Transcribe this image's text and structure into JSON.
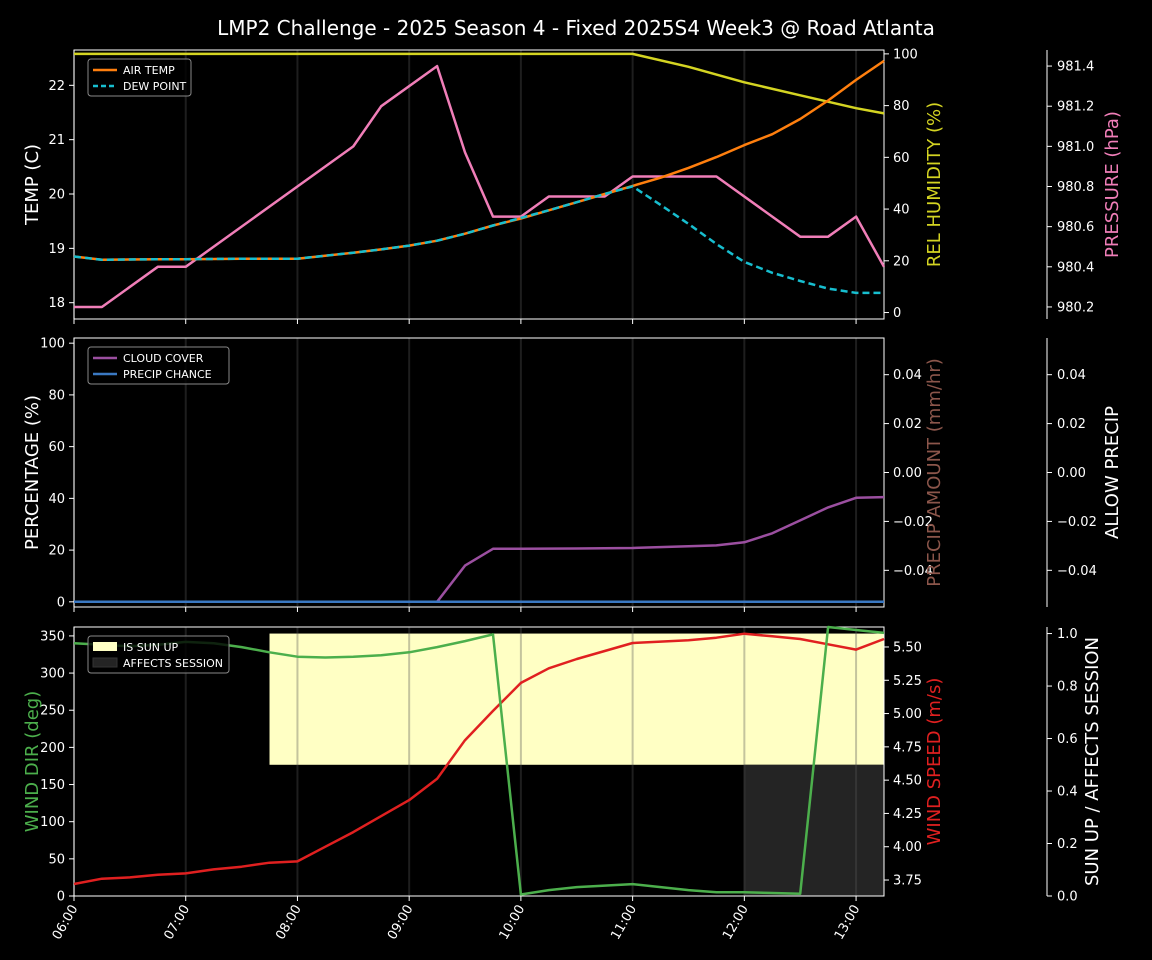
{
  "title": "LMP2 Challenge  - 2025 Season 4 - Fixed 2025S4 Week3 @ Road Atlanta",
  "colors": {
    "background": "#000000",
    "axis": "#ffffff",
    "air_temp": "#ff7f0e",
    "dew_point": "#17becf",
    "humidity": "#d4d422",
    "pressure": "#f07eb8",
    "cloud_cover": "#9b4fa0",
    "precip_chance": "#3a78c2",
    "precip_amount_label": "#8c564b",
    "wind_dir": "#4caf4c",
    "wind_speed": "#e02020",
    "sun_up": "#ffffc4",
    "affects_session": "#242424"
  },
  "x_ticks": [
    "06:00",
    "07:00",
    "08:00",
    "09:00",
    "10:00",
    "11:00",
    "12:00",
    "13:00"
  ],
  "chart_data": [
    {
      "type": "line",
      "title": "",
      "xlabel": "",
      "x": [
        6.0,
        6.25,
        6.75,
        7.0,
        7.5,
        8.0,
        8.5,
        8.75,
        9.0,
        9.25,
        9.5,
        9.75,
        10.0,
        10.25,
        10.5,
        10.75,
        11.0,
        11.25,
        11.5,
        11.75,
        12.0,
        12.25,
        12.5,
        12.75,
        13.0,
        13.25
      ],
      "xlim": [
        6.0,
        13.25
      ],
      "left_axis": {
        "ylabel": "TEMP (C)",
        "ylim": [
          17.7,
          22.65
        ],
        "ticks": [
          "18",
          "19",
          "20",
          "21",
          "22"
        ],
        "series": [
          {
            "name": "AIR TEMP",
            "color": "#ff7f0e",
            "style": "solid",
            "values": [
              18.85,
              18.79,
              18.8,
              18.8,
              18.81,
              18.81,
              18.92,
              18.98,
              19.05,
              19.14,
              19.27,
              19.42,
              19.55,
              19.7,
              19.85,
              20.0,
              20.15,
              20.3,
              20.48,
              20.68,
              20.9,
              21.1,
              21.38,
              21.72,
              22.1,
              22.45
            ]
          },
          {
            "name": "DEW POINT",
            "color": "#17becf",
            "style": "dashed",
            "values": [
              18.85,
              18.79,
              18.8,
              18.8,
              18.81,
              18.81,
              18.92,
              18.98,
              19.05,
              19.14,
              19.27,
              19.42,
              19.56,
              19.7,
              19.85,
              20.0,
              20.14,
              19.8,
              19.45,
              19.08,
              18.75,
              18.55,
              18.4,
              18.26,
              18.18,
              18.18
            ]
          }
        ]
      },
      "right_axis_1": {
        "ylabel": "REL HUMIDITY (%)",
        "ylim": [
          -2.5,
          101.5
        ],
        "ticks": [
          "0",
          "20",
          "40",
          "60",
          "80",
          "100"
        ],
        "series": [
          {
            "name": "REL HUMIDITY",
            "color": "#d4d422",
            "x": [
              6.0,
              11.0,
              11.5,
              12.0,
              12.5,
              13.0,
              13.25
            ],
            "values": [
              100,
              100,
              95,
              89,
              84,
              79,
              77
            ]
          }
        ]
      },
      "right_axis_2": {
        "ylabel": "PRESSURE (hPa)",
        "ylim": [
          980.14,
          981.48
        ],
        "ticks": [
          "980.2",
          "980.4",
          "980.6",
          "980.8",
          "981.0",
          "981.2",
          "981.4"
        ],
        "series": [
          {
            "name": "PRESSURE",
            "color": "#f07eb8",
            "x": [
              6.0,
              6.25,
              6.75,
              7.0,
              8.0,
              8.5,
              8.75,
              9.25,
              9.5,
              9.75,
              10.0,
              10.25,
              10.75,
              11.0,
              11.75,
              12.5,
              12.75,
              13.0,
              13.25
            ],
            "values": [
              980.2,
              980.2,
              980.4,
              980.4,
              980.8,
              981.0,
              981.2,
              981.4,
              980.97,
              980.65,
              980.65,
              980.75,
              980.75,
              980.85,
              980.85,
              980.55,
              980.55,
              980.65,
              980.4
            ]
          }
        ]
      },
      "legend": {
        "placement": "top-left",
        "entries": [
          "AIR TEMP",
          "DEW POINT"
        ]
      },
      "grid": "vertical hour lines"
    },
    {
      "type": "line",
      "title": "",
      "xlim": [
        6.0,
        13.25
      ],
      "left_axis": {
        "ylabel": "PERCENTAGE (%)",
        "ylim": [
          -2,
          102
        ],
        "ticks": [
          "0",
          "20",
          "40",
          "60",
          "80",
          "100"
        ],
        "series": [
          {
            "name": "CLOUD COVER",
            "color": "#9b4fa0",
            "x": [
              6.0,
              9.25,
              9.5,
              9.75,
              10.0,
              10.5,
              11.0,
              11.5,
              11.75,
              12.0,
              12.25,
              12.5,
              12.75,
              13.0,
              13.25
            ],
            "values": [
              0,
              0,
              14,
              20.5,
              20.5,
              20.6,
              20.8,
              21.5,
              21.8,
              23,
              26.5,
              31.5,
              36.5,
              40.2,
              40.5
            ]
          },
          {
            "name": "PRECIP CHANCE",
            "color": "#3a78c2",
            "x": [
              6.0,
              13.25
            ],
            "values": [
              0,
              0
            ]
          }
        ]
      },
      "right_axis_1": {
        "ylabel": "PRECIP AMOUNT (mm/hr)",
        "ylim": [
          -0.055,
          0.055
        ],
        "ticks": [
          "−0.04",
          "−0.02",
          "0.00",
          "0.02",
          "0.04"
        ],
        "series": []
      },
      "right_axis_2": {
        "ylabel": "ALLOW PRECIP",
        "ylim": [
          -0.055,
          0.055
        ],
        "ticks": [
          "−0.04",
          "−0.02",
          "0.00",
          "0.02",
          "0.04"
        ],
        "series": []
      },
      "legend": {
        "placement": "top-left",
        "entries": [
          "CLOUD COVER",
          "PRECIP CHANCE"
        ]
      }
    },
    {
      "type": "line",
      "title": "",
      "xlim": [
        6.0,
        13.25
      ],
      "left_axis": {
        "ylabel": "WIND DIR (deg)",
        "ylim": [
          0,
          362
        ],
        "ticks": [
          "0",
          "50",
          "100",
          "150",
          "200",
          "250",
          "300",
          "350"
        ],
        "series": [
          {
            "name": "WIND DIR",
            "color": "#4caf4c",
            "x": [
              6.0,
              6.25,
              6.5,
              6.75,
              7.0,
              7.25,
              7.5,
              7.75,
              8.0,
              8.25,
              8.5,
              8.75,
              9.0,
              9.25,
              9.5,
              9.75,
              10.0,
              10.25,
              10.5,
              10.75,
              11.0,
              11.25,
              11.5,
              11.75,
              12.0,
              12.25,
              12.5,
              12.75,
              13.0,
              13.25
            ],
            "values": [
              340,
              338,
              336,
              338,
              342,
              340,
              335,
              328,
              322,
              321,
              322,
              324,
              328,
              335,
              343,
              352,
              2,
              8,
              12,
              14,
              16,
              12,
              8,
              5,
              5,
              4,
              3,
              362,
              358,
              354
            ]
          }
        ]
      },
      "right_axis_1": {
        "ylabel": "WIND SPEED (m/s)",
        "ylim": [
          3.63,
          5.65
        ],
        "ticks": [
          "3.75",
          "4.00",
          "4.25",
          "4.50",
          "4.75",
          "5.00",
          "5.25",
          "5.50"
        ],
        "series": [
          {
            "name": "WIND SPEED",
            "color": "#e02020",
            "x": [
              6.0,
              6.25,
              6.5,
              6.75,
              7.0,
              7.25,
              7.5,
              7.75,
              8.0,
              8.25,
              8.5,
              8.75,
              9.0,
              9.25,
              9.5,
              9.75,
              10.0,
              10.25,
              10.5,
              10.75,
              11.0,
              11.25,
              11.5,
              11.75,
              12.0,
              12.25,
              12.5,
              12.75,
              13.0,
              13.25
            ],
            "values": [
              3.72,
              3.76,
              3.77,
              3.79,
              3.8,
              3.83,
              3.85,
              3.88,
              3.89,
              4.0,
              4.11,
              4.23,
              4.35,
              4.51,
              4.8,
              5.02,
              5.23,
              5.34,
              5.41,
              5.47,
              5.53,
              5.54,
              5.55,
              5.57,
              5.6,
              5.58,
              5.56,
              5.52,
              5.48,
              5.56
            ]
          }
        ]
      },
      "right_axis_2": {
        "ylabel": "SUN UP / AFFECTS SESSION",
        "ylim": [
          0,
          1.025
        ],
        "ticks": [
          "0.0",
          "0.2",
          "0.4",
          "0.6",
          "0.8",
          "1.0"
        ],
        "bands": [
          {
            "name": "IS SUN UP",
            "color": "#ffffc4",
            "x_start": 7.75,
            "x_end": 13.25,
            "y_start": 0.5,
            "y_end": 1.0
          },
          {
            "name": "AFFECTS SESSION",
            "color": "#242424",
            "x_start": 12.0,
            "x_end": 13.25,
            "y_start": 0.0,
            "y_end": 0.5
          }
        ]
      },
      "legend": {
        "placement": "top-left",
        "entries": [
          "IS SUN UP",
          "AFFECTS SESSION"
        ]
      }
    }
  ]
}
